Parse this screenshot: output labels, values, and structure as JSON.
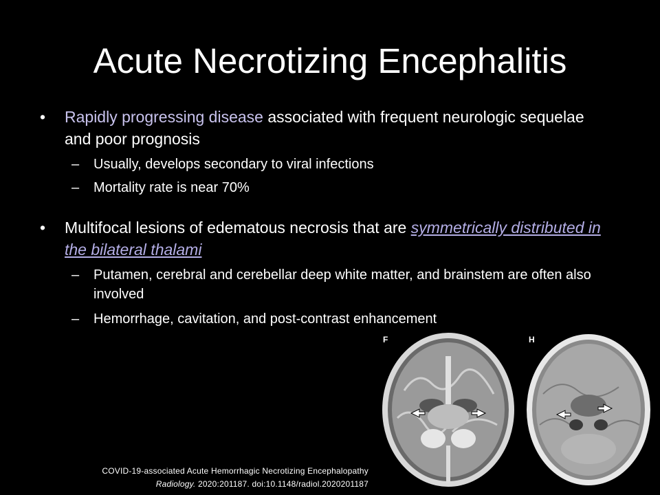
{
  "slide": {
    "title": "Acute Necrotizing Encephalitis"
  },
  "bullets": [
    {
      "highlight": "Rapidly progressing disease",
      "text": " associated with frequent neurologic sequelae and poor prognosis",
      "sub": [
        "Usually, develops secondary to viral infections",
        "Mortality rate is near 70%"
      ]
    },
    {
      "text": "Multifocal lesions of edematous necrosis that are ",
      "link": "symmetrically distributed in the bilateral thalami",
      "sub": [
        "Putamen, cerebral and cerebellar deep white matter, and brainstem are often also involved",
        "Hemorrhage, cavitation, and post-contrast enhancement"
      ]
    }
  ],
  "bullet_marks": {
    "level1": "•",
    "level2": "–"
  },
  "figures": {
    "left_label": "F",
    "right_label": "H"
  },
  "citation": {
    "line1": "COVID-19-associated Acute Hemorrhagic Necrotizing Encephalopathy",
    "journal": "Radiology.",
    "line2_rest": " 2020:201187.  doi:10.1148/radiol.2020201187"
  },
  "colors": {
    "background": "#000000",
    "text": "#ffffff",
    "highlight": "#c9c3ee",
    "link": "#b4aee6"
  }
}
